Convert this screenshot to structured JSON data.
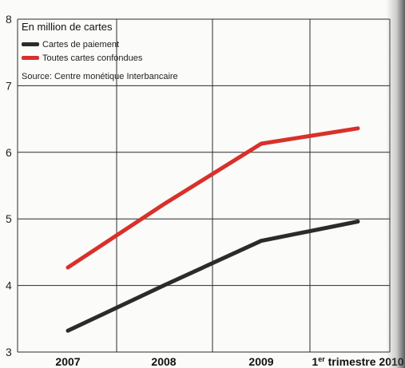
{
  "chart_data": {
    "type": "line",
    "title": "En million de cartes",
    "source": "Source: Centre monétique Interbancaire",
    "categories": [
      "2007",
      "2008",
      "2009",
      "1er trimestre 2010"
    ],
    "category_labels": [
      {
        "main": "2007",
        "sup": ""
      },
      {
        "main": "2008",
        "sup": ""
      },
      {
        "main": "2009",
        "sup": ""
      },
      {
        "main": "1",
        "sup": "er",
        "rest": " trimestre 2010"
      }
    ],
    "y_ticks": [
      3,
      4,
      5,
      6,
      7,
      8
    ],
    "ylim": [
      3,
      8
    ],
    "grid": true,
    "legend_position": "top-left",
    "series": [
      {
        "name": "Cartes de paiement",
        "color": "#2b2b2b",
        "values": [
          3.32,
          4.0,
          4.67,
          4.96
        ]
      },
      {
        "name": "Toutes cartes confondues",
        "color": "#d8312a",
        "values": [
          4.27,
          5.22,
          6.13,
          6.36
        ]
      }
    ]
  }
}
